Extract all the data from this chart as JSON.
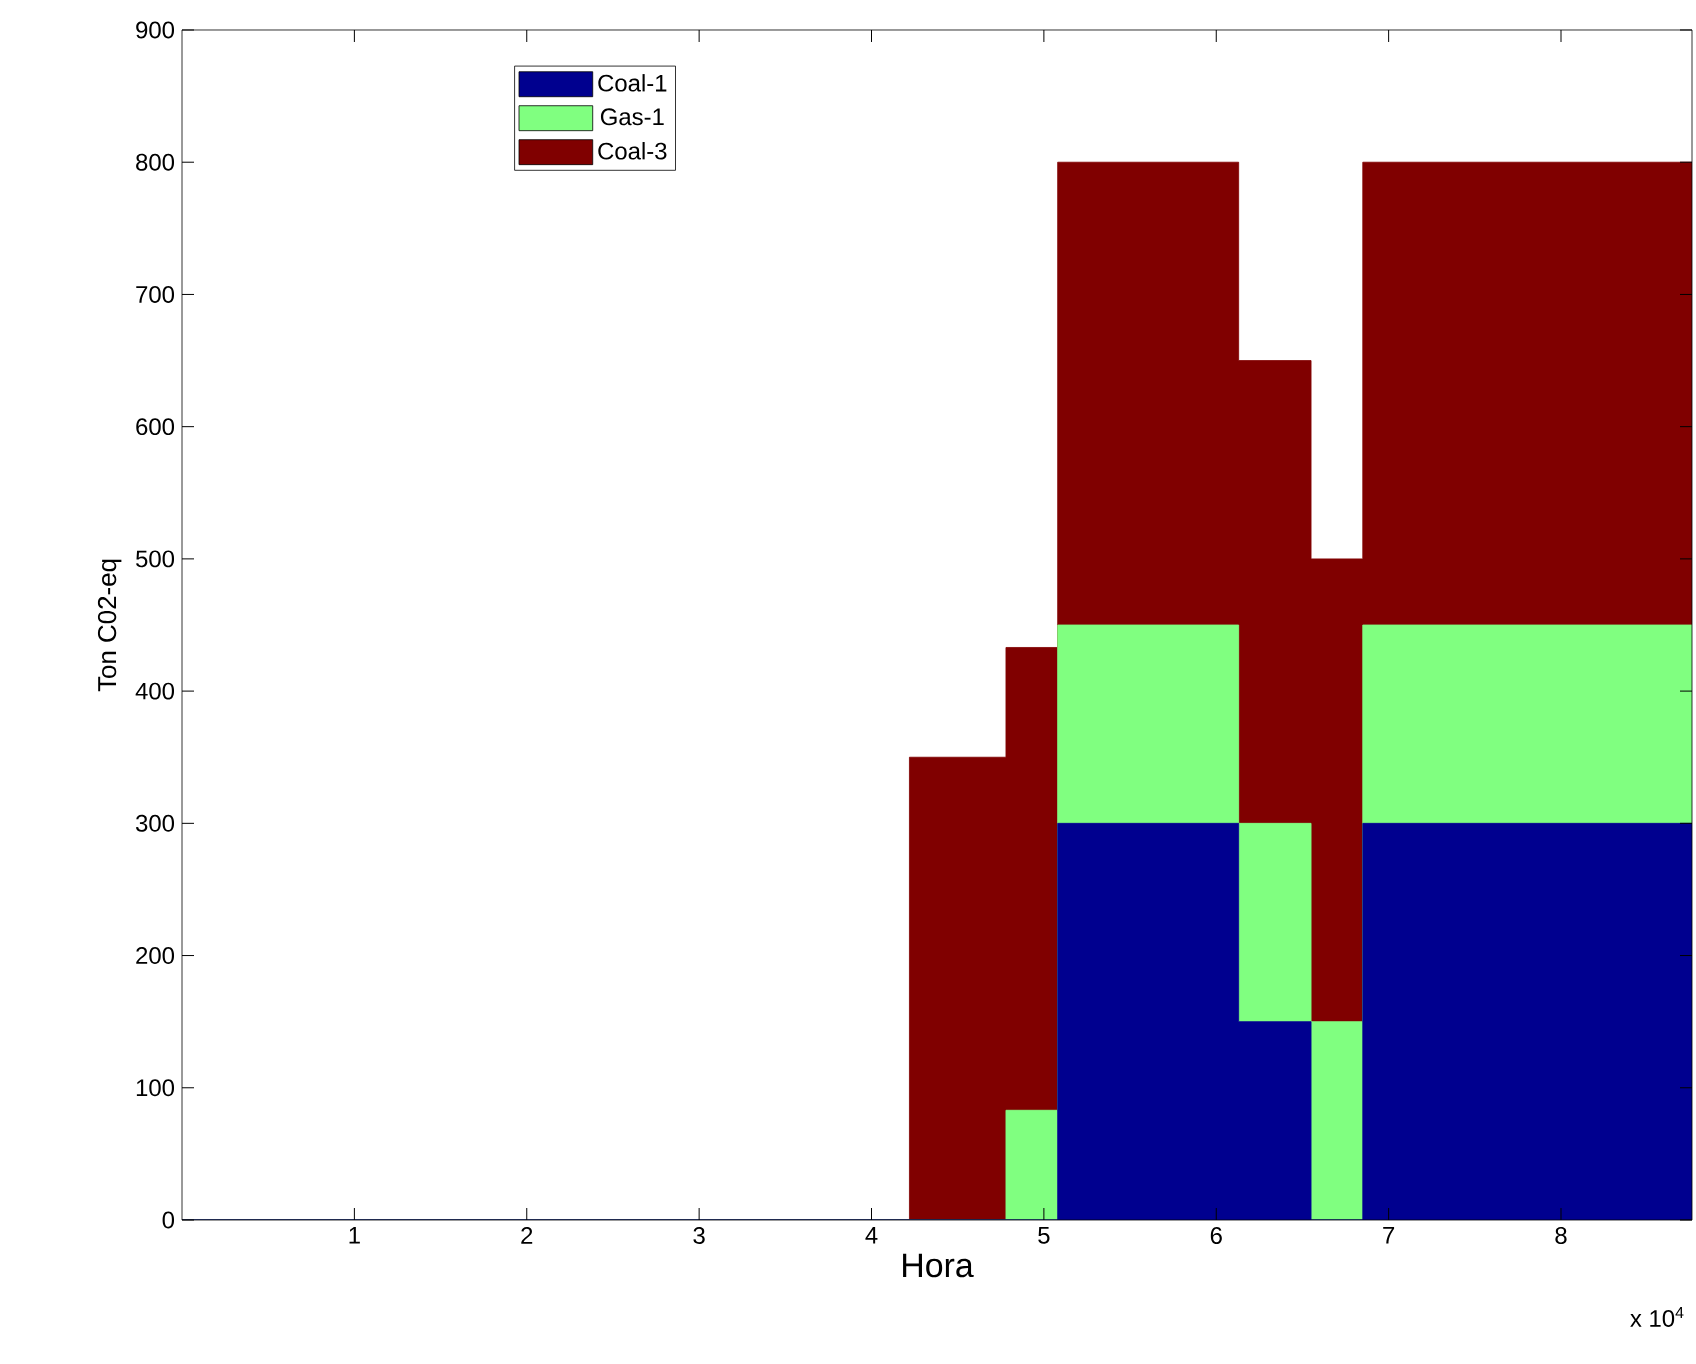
{
  "chart_data": {
    "type": "area",
    "stacked": true,
    "xlabel": "Hora",
    "ylabel": "Ton C02-eq",
    "x": [
      0,
      4.22,
      4.22,
      4.78,
      4.78,
      5.08,
      5.08,
      6.13,
      6.13,
      6.55,
      6.55,
      6.85,
      6.85,
      8.76
    ],
    "series": [
      {
        "name": "Coal-1",
        "color": "#00008f",
        "values": [
          0,
          0,
          0,
          0,
          0,
          0,
          300,
          300,
          150,
          150,
          0,
          0,
          300,
          300
        ]
      },
      {
        "name": "Gas-1",
        "color": "#80ff80",
        "values": [
          0,
          0,
          0,
          0,
          83,
          83,
          150,
          150,
          150,
          150,
          150,
          150,
          150,
          150
        ]
      },
      {
        "name": "Coal-3",
        "color": "#800000",
        "values": [
          0,
          0,
          350,
          350,
          350,
          350,
          350,
          350,
          350,
          350,
          350,
          350,
          350,
          350
        ]
      }
    ],
    "xlim": [
      0,
      8.76
    ],
    "ylim": [
      0,
      900
    ],
    "xticks": [
      1,
      2,
      3,
      4,
      5,
      6,
      7,
      8
    ],
    "yticks": [
      0,
      100,
      200,
      300,
      400,
      500,
      600,
      700,
      800,
      900
    ],
    "legend": "top left",
    "annotations": [
      "x 10$^{4}$"
    ]
  }
}
